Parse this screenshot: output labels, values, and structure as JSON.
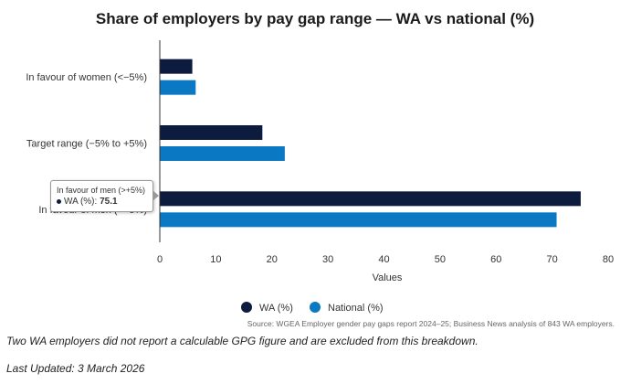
{
  "colors": {
    "wa": "#0d1b3e",
    "national": "#0a78c2",
    "axis": "#333333",
    "grid": "#e6e6e6"
  },
  "chart_data": {
    "type": "bar",
    "orientation": "horizontal",
    "title": "Share of employers by pay gap range — WA vs national (%)",
    "categories": [
      "In favour of women (<−5%)",
      "Target range (−5% to +5%)",
      "In favour of men (>+5%)"
    ],
    "series": [
      {
        "name": "WA (%)",
        "values": [
          5.8,
          18.3,
          75.1
        ]
      },
      {
        "name": "National (%)",
        "values": [
          6.4,
          22.3,
          70.8
        ]
      }
    ],
    "xlabel": "Values",
    "ylabel": "",
    "xlim": [
      0,
      80
    ],
    "xticks": [
      0,
      10,
      20,
      30,
      40,
      50,
      60,
      70,
      80
    ],
    "grid": false,
    "legend_position": "bottom-center"
  },
  "source": "Source: WGEA Employer gender pay gaps report 2024–25; Business News analysis of 843 WA employers.",
  "footnote": "Two WA employers did not report a calculable GPG figure and are excluded from this breakdown.",
  "last_updated": "Last Updated: 3 March 2026",
  "tooltip": {
    "title": "In favour of men (>+5%)",
    "series": "WA (%):",
    "value": "75.1"
  }
}
